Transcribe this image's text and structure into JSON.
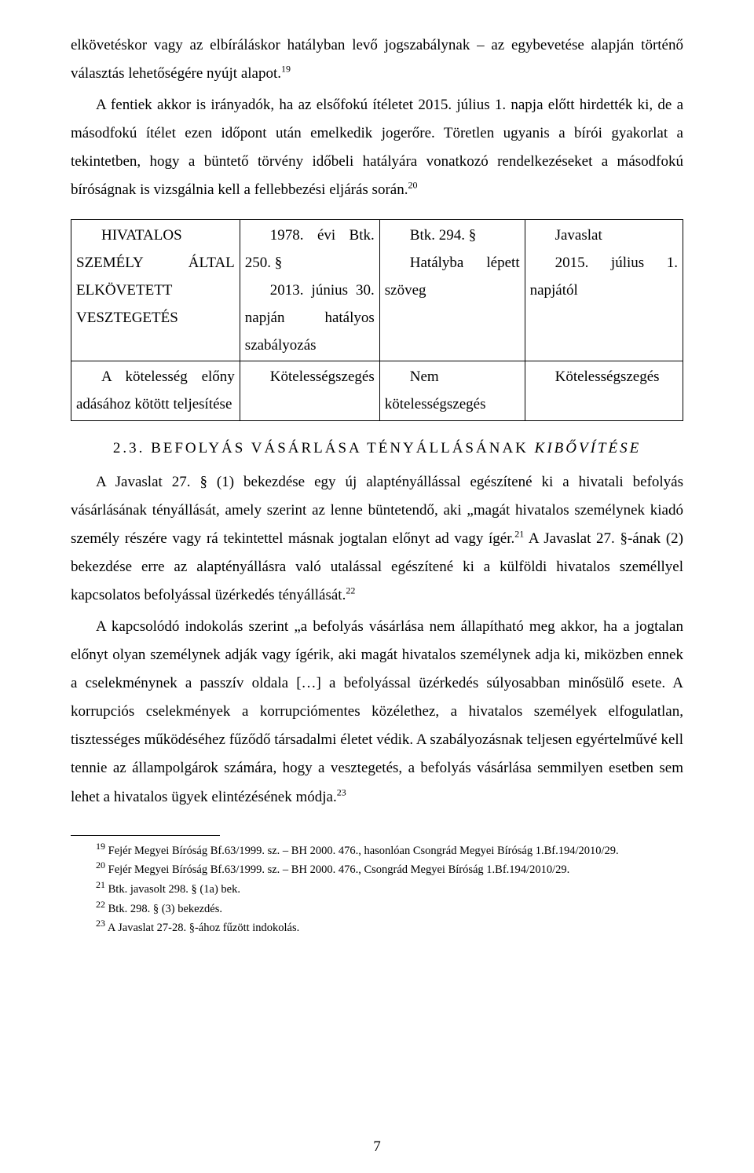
{
  "paragraphs": {
    "p1_part1": "elkövetéskor vagy az elbíráláskor hatályban levő jogszabálynak – az egybevetése alapján történő választás lehetőségére nyújt alapot.",
    "p1_sup": "19",
    "p2_part1": "A fentiek akkor is irányadók, ha az elsőfokú ítéletet 2015. július 1. napja előtt hirdették ki, de a másodfokú ítélet ezen időpont után emelkedik jogerőre. Töretlen ugyanis a bírói gyakorlat a tekintetben, hogy a büntető törvény időbeli hatályára vonatkozó rendelkezéseket a másodfokú bíróságnak is vizsgálnia kell a fellebbezési eljárás során.",
    "p2_sup": "20"
  },
  "table": {
    "row1": {
      "c1": "HIVATALOS SZEMÉLY ÁLTAL ELKÖVETETT VESZTEGETÉS",
      "c2": "1978. évi Btk. 250. §",
      "c2b": "2013. június 30. napján hatályos szabályozás",
      "c3": "Btk. 294. §",
      "c3b": "Hatályba lépett szöveg",
      "c4": "Javaslat",
      "c4b": "2015. július 1. napjától"
    },
    "row2": {
      "c1": "A kötelesség előny adásához kötött teljesítése",
      "c2": "Kötelességszegés",
      "c3": "Nem kötelességszegés",
      "c4": "Kötelességszegés"
    }
  },
  "section_title": "2.3. BEFOLYÁS VÁSÁRLÁSA TÉNYÁLLÁSÁNAK KIBŐVÍTÉSE",
  "para3_a": "A Javaslat 27. § (1) bekezdése egy új alaptényállással egészítené ki a hivatali befolyás vásárlásának tényállását, amely szerint az lenne büntetendő, aki „magát hivatalos személynek kiadó személy részére vagy rá tekintettel másnak jogtalan előnyt ad vagy ígér.",
  "para3_sup1": "21",
  "para3_b": " A Javaslat 27. §-ának (2) bekezdése erre az alaptényállásra való utalással egészítené ki a külföldi hivatalos személlyel kapcsolatos befolyással üzérkedés tényállását.",
  "para3_sup2": "22",
  "para4": "A kapcsolódó indokolás szerint „a befolyás vásárlása nem állapítható meg akkor, ha a jogtalan előnyt olyan személynek adják vagy ígérik, aki magát hivatalos személynek adja ki, miközben ennek a cselekménynek a passzív oldala […] a befolyással üzérkedés súlyosabban minősülő esete. A korrupciós cselekmények a korrupciómentes közélethez, a hivatalos személyek elfogulatlan, tisztességes működéséhez fűződő társadalmi életet védik. A szabályozásnak teljesen egyértelművé kell tennie az állampolgárok számára, hogy a vesztegetés, a befolyás vásárlása semmilyen esetben sem lehet a hivatalos ügyek elintézésének módja.",
  "para4_sup": "23",
  "footnotes": {
    "f19": "Fejér Megyei Bíróság Bf.63/1999. sz. – BH 2000. 476., hasonlóan Csongrád Megyei Bíróság 1.Bf.194/2010/29.",
    "f20": "Fejér Megyei Bíróság Bf.63/1999. sz. – BH 2000. 476., Csongrád Megyei Bíróság 1.Bf.194/2010/29.",
    "f21": "Btk. javasolt 298. § (1a) bek.",
    "f22": "Btk. 298. § (3) bekezdés.",
    "f23": "A Javaslat 27-28. §-ához fűzött indokolás."
  },
  "footnote_nums": {
    "n19": "19",
    "n20": "20",
    "n21": "21",
    "n22": "22",
    "n23": "23"
  },
  "italic_span": "KIBŐVÍTÉSE",
  "page_number": "7"
}
